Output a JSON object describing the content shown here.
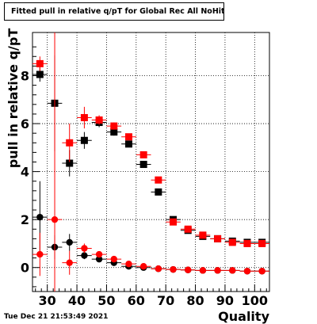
{
  "title": "Fitted pull in relative q/pT for Global Rec All NoHits",
  "footer": "Tue Dec 21 21:53:49 2021",
  "chart_data": {
    "type": "scatter",
    "title": "Fitted pull in relative q/pT for Global Rec All NoHits",
    "xlabel": "Quality",
    "ylabel": "pull in relative q/pT",
    "xlim": [
      25,
      105
    ],
    "ylim": [
      -1,
      9.8
    ],
    "xticks": [
      30,
      40,
      50,
      60,
      70,
      80,
      90,
      100
    ],
    "yticks": [
      0,
      2,
      4,
      6,
      8
    ],
    "grid": true,
    "x": [
      27.5,
      32.5,
      37.5,
      42.5,
      47.5,
      52.5,
      57.5,
      62.5,
      67.5,
      72.5,
      77.5,
      82.5,
      87.5,
      92.5,
      97.5,
      102.5
    ],
    "series": [
      {
        "color": "#000000",
        "marker": "square",
        "values": [
          8.05,
          6.85,
          4.35,
          5.3,
          6.05,
          5.65,
          5.15,
          4.3,
          3.15,
          2.0,
          1.55,
          1.3,
          1.2,
          1.1,
          1.05,
          1.05
        ],
        "errors": [
          0.3,
          2.0,
          0.55,
          0.35,
          0.2,
          0.15,
          0.12,
          0.1,
          0.1,
          0.08,
          0.07,
          0.06,
          0.06,
          0.05,
          0.05,
          0.05
        ]
      },
      {
        "color": "#ff0000",
        "marker": "square",
        "values": [
          8.5,
          null,
          5.2,
          6.25,
          6.15,
          5.9,
          5.45,
          4.7,
          3.65,
          1.9,
          1.6,
          1.35,
          1.2,
          1.05,
          1.0,
          1.0
        ],
        "errors": [
          0.3,
          null,
          0.8,
          0.45,
          0.2,
          0.15,
          0.12,
          0.1,
          0.1,
          0.08,
          0.07,
          0.06,
          0.06,
          0.05,
          0.05,
          0.05
        ]
      },
      {
        "color": "#000000",
        "marker": "circle",
        "values": [
          2.1,
          0.85,
          1.05,
          0.5,
          0.35,
          0.2,
          0.05,
          0.0,
          -0.05,
          -0.08,
          -0.1,
          -0.12,
          -0.12,
          -0.12,
          -0.15,
          -0.15
        ],
        "errors": [
          1.5,
          0.5,
          0.35,
          0.15,
          0.1,
          0.05,
          0.05,
          0.04,
          0.04,
          0.03,
          0.03,
          0.03,
          0.03,
          0.03,
          0.03,
          0.03
        ]
      },
      {
        "color": "#ff0000",
        "marker": "circle",
        "values": [
          0.55,
          2.0,
          0.2,
          0.8,
          0.55,
          0.35,
          0.15,
          0.05,
          -0.05,
          -0.08,
          -0.1,
          -0.12,
          -0.12,
          -0.12,
          -0.15,
          -0.15
        ],
        "errors": [
          0.9,
          11.0,
          0.5,
          0.2,
          0.12,
          0.08,
          0.06,
          0.05,
          0.04,
          0.04,
          0.03,
          0.03,
          0.03,
          0.03,
          0.03,
          0.03
        ]
      }
    ]
  }
}
